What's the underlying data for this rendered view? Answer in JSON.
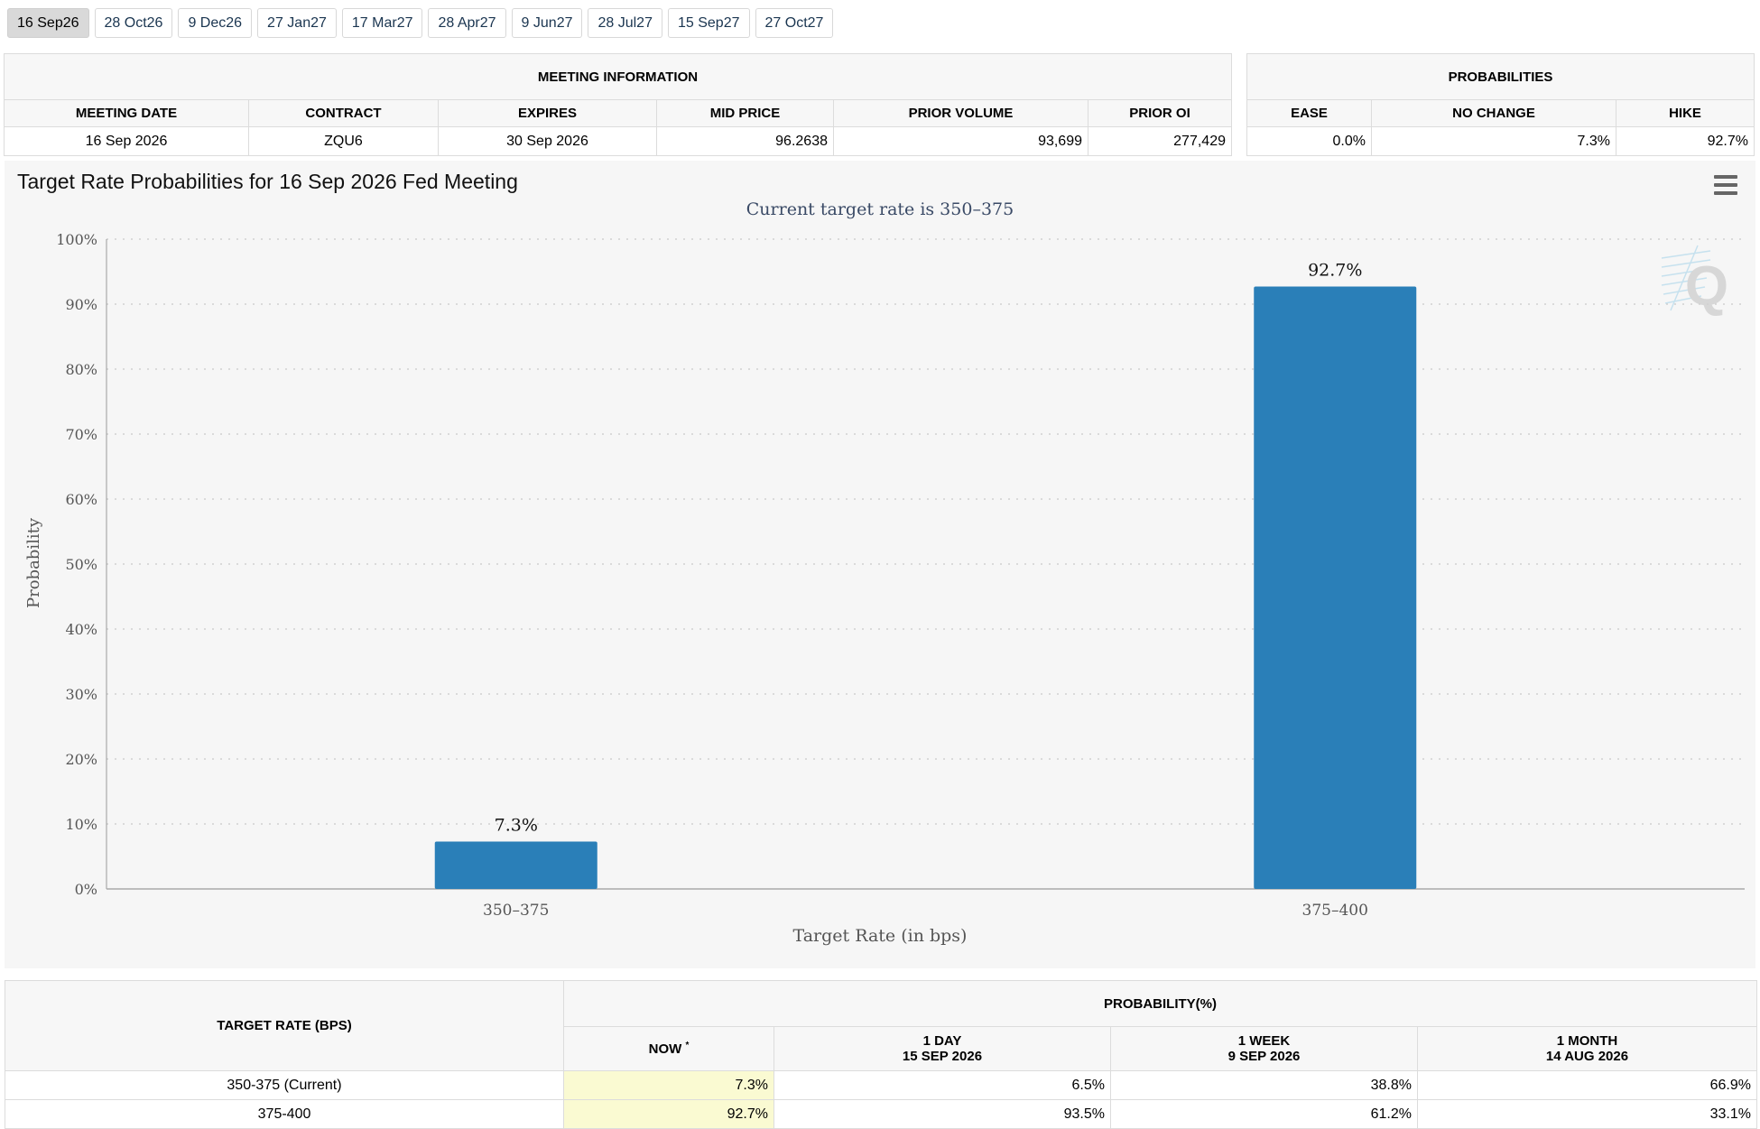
{
  "tabs": [
    "16 Sep26",
    "28 Oct26",
    "9 Dec26",
    "27 Jan27",
    "17 Mar27",
    "28 Apr27",
    "9 Jun27",
    "28 Jul27",
    "15 Sep27",
    "27 Oct27"
  ],
  "active_tab": "16 Sep26",
  "meeting_info": {
    "title": "MEETING INFORMATION",
    "headers": [
      "MEETING DATE",
      "CONTRACT",
      "EXPIRES",
      "MID PRICE",
      "PRIOR VOLUME",
      "PRIOR OI"
    ],
    "values": [
      "16 Sep 2026",
      "ZQU6",
      "30 Sep 2026",
      "96.2638",
      "93,699",
      "277,429"
    ]
  },
  "probabilities": {
    "title": "PROBABILITIES",
    "headers": [
      "EASE",
      "NO CHANGE",
      "HIKE"
    ],
    "values": [
      "0.0%",
      "7.3%",
      "92.7%"
    ]
  },
  "chart": {
    "title": "Target Rate Probabilities for 16 Sep 2026 Fed Meeting",
    "menu_icon": "hamburger-menu-icon",
    "watermark_icon": "q-logo-icon",
    "bar_color": "#2a7fb8"
  },
  "chart_data": {
    "type": "bar",
    "title": "Current target rate is 350–375",
    "xlabel": "Target Rate (in bps)",
    "ylabel": "Probability",
    "categories": [
      "350–375",
      "375–400"
    ],
    "values": [
      7.3,
      92.7
    ],
    "data_labels": [
      "7.3%",
      "92.7%"
    ],
    "ylim": [
      0,
      100
    ],
    "yticks": [
      "0%",
      "10%",
      "20%",
      "30%",
      "40%",
      "50%",
      "60%",
      "70%",
      "80%",
      "90%",
      "100%"
    ],
    "grid": true,
    "legend": "none"
  },
  "prob_table": {
    "rate_header": "TARGET RATE (BPS)",
    "group_header": "PROBABILITY(%)",
    "now_header": "NOW",
    "now_mark": "*",
    "cols": [
      {
        "line1": "1 DAY",
        "line2": "15 SEP 2026"
      },
      {
        "line1": "1 WEEK",
        "line2": "9 SEP 2026"
      },
      {
        "line1": "1 MONTH",
        "line2": "14 AUG 2026"
      }
    ],
    "rows": [
      {
        "rate": "350-375 (Current)",
        "now": "7.3%",
        "day": "6.5%",
        "week": "38.8%",
        "month": "66.9%"
      },
      {
        "rate": "375-400",
        "now": "92.7%",
        "day": "93.5%",
        "week": "61.2%",
        "month": "33.1%"
      }
    ]
  }
}
